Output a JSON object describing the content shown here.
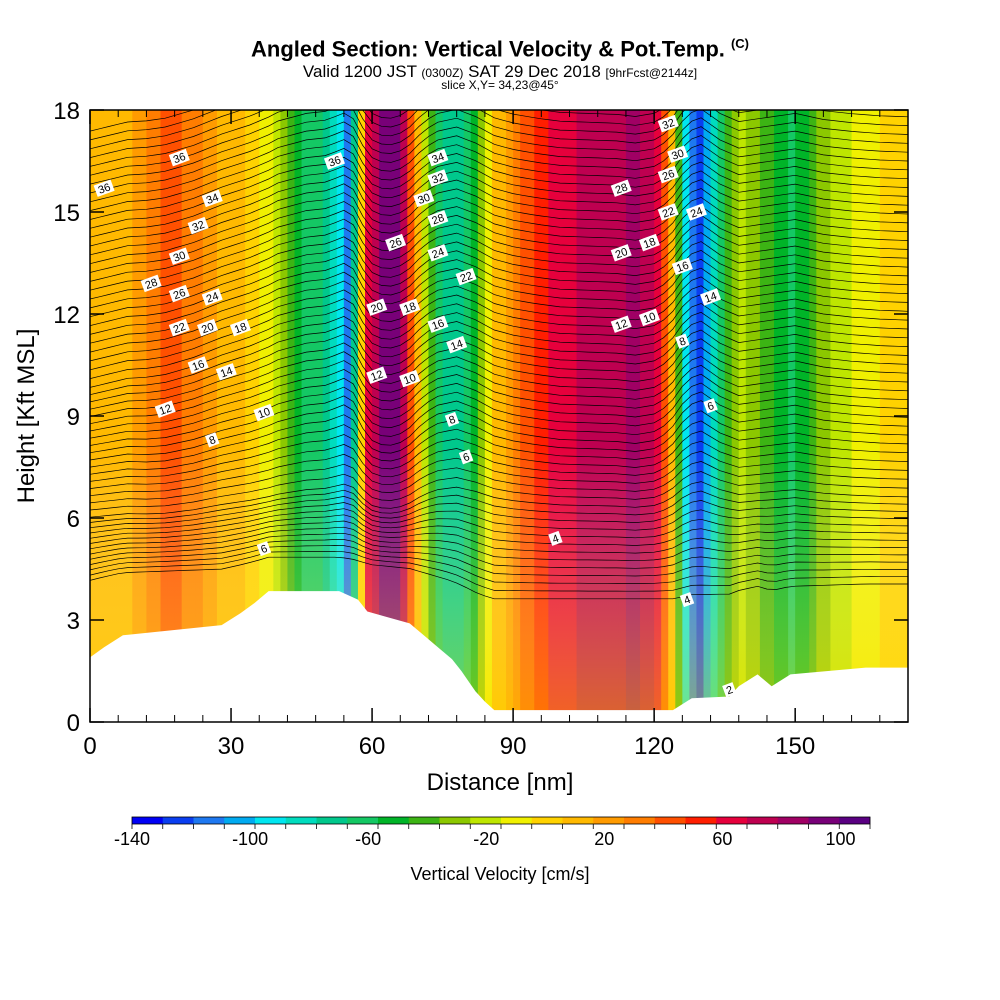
{
  "title": {
    "main": "Angled Section: Vertical Velocity & Pot.Temp.",
    "copyright": "(C)",
    "valid_prefix": "Valid 1200 JST",
    "valid_zulu": "(0300Z)",
    "valid_date": "SAT 29 Dec 2018",
    "forecast": "[9hrFcst@2144z]",
    "slice": "slice X,Y= 34,23@45°"
  },
  "chart_data": {
    "type": "heatmap",
    "xlabel": "Distance [nm]",
    "ylabel": "Height [Kft MSL]",
    "xlim": [
      0,
      174
    ],
    "ylim": [
      0,
      18
    ],
    "x_ticks": [
      0,
      30,
      60,
      90,
      120,
      150
    ],
    "y_ticks": [
      0,
      3,
      6,
      9,
      12,
      15,
      18
    ],
    "colorbar": {
      "label": "Vertical Velocity [cm/s]",
      "range": [
        -140,
        110
      ],
      "tick_labels": [
        -140,
        -100,
        -60,
        -20,
        20,
        60,
        100
      ],
      "colors": [
        "#0000f5",
        "#0a3ef0",
        "#1e78f0",
        "#00aaf0",
        "#00e6f0",
        "#00dcbe",
        "#00c88c",
        "#14c864",
        "#00b428",
        "#3cb414",
        "#8cc800",
        "#bee600",
        "#f0f000",
        "#ffd200",
        "#ffb900",
        "#ff9b00",
        "#ff7d00",
        "#ff5000",
        "#ff1e00",
        "#e6003c",
        "#be0050",
        "#a00064",
        "#780078",
        "#5a0082"
      ]
    },
    "velocity_bands": [
      {
        "x": 0,
        "v": 10
      },
      {
        "x": 8,
        "v": 12
      },
      {
        "x": 12,
        "v": 30
      },
      {
        "x": 16,
        "v": 40
      },
      {
        "x": 22,
        "v": 35
      },
      {
        "x": 28,
        "v": 15
      },
      {
        "x": 34,
        "v": 5
      },
      {
        "x": 38,
        "v": -10
      },
      {
        "x": 42,
        "v": -35
      },
      {
        "x": 46,
        "v": -60
      },
      {
        "x": 50,
        "v": -70
      },
      {
        "x": 53,
        "v": -95
      },
      {
        "x": 55,
        "v": -115
      },
      {
        "x": 57,
        "v": -40
      },
      {
        "x": 59,
        "v": 60
      },
      {
        "x": 62,
        "v": 90
      },
      {
        "x": 65,
        "v": 95
      },
      {
        "x": 68,
        "v": 50
      },
      {
        "x": 71,
        "v": -20
      },
      {
        "x": 74,
        "v": -60
      },
      {
        "x": 78,
        "v": -80
      },
      {
        "x": 82,
        "v": -45
      },
      {
        "x": 86,
        "v": 5
      },
      {
        "x": 90,
        "v": 30
      },
      {
        "x": 95,
        "v": 50
      },
      {
        "x": 100,
        "v": 65
      },
      {
        "x": 106,
        "v": 70
      },
      {
        "x": 112,
        "v": 75
      },
      {
        "x": 116,
        "v": 85
      },
      {
        "x": 120,
        "v": 70
      },
      {
        "x": 123,
        "v": 30
      },
      {
        "x": 125,
        "v": -30
      },
      {
        "x": 127,
        "v": -100
      },
      {
        "x": 130,
        "v": -125
      },
      {
        "x": 134,
        "v": -60
      },
      {
        "x": 138,
        "v": -20
      },
      {
        "x": 144,
        "v": -40
      },
      {
        "x": 150,
        "v": -60
      },
      {
        "x": 156,
        "v": -30
      },
      {
        "x": 162,
        "v": -15
      },
      {
        "x": 168,
        "v": -5
      },
      {
        "x": 174,
        "v": 0
      }
    ],
    "terrain": [
      {
        "x": 0,
        "h": 1.9
      },
      {
        "x": 3,
        "h": 2.2
      },
      {
        "x": 7,
        "h": 2.55
      },
      {
        "x": 28,
        "h": 2.85
      },
      {
        "x": 32,
        "h": 3.2
      },
      {
        "x": 35,
        "h": 3.5
      },
      {
        "x": 38,
        "h": 3.85
      },
      {
        "x": 52,
        "h": 3.85
      },
      {
        "x": 53,
        "h": 3.85
      },
      {
        "x": 57,
        "h": 3.6
      },
      {
        "x": 59,
        "h": 3.25
      },
      {
        "x": 68,
        "h": 2.9
      },
      {
        "x": 71,
        "h": 2.55
      },
      {
        "x": 74,
        "h": 2.2
      },
      {
        "x": 77,
        "h": 1.85
      },
      {
        "x": 79,
        "h": 1.5
      },
      {
        "x": 81,
        "h": 1.1
      },
      {
        "x": 82,
        "h": 0.9
      },
      {
        "x": 84,
        "h": 0.6
      },
      {
        "x": 86,
        "h": 0.35
      },
      {
        "x": 124,
        "h": 0.35
      },
      {
        "x": 128,
        "h": 0.7
      },
      {
        "x": 136,
        "h": 0.75
      },
      {
        "x": 138,
        "h": 1.05
      },
      {
        "x": 142,
        "h": 1.4
      },
      {
        "x": 145,
        "h": 1.05
      },
      {
        "x": 149,
        "h": 1.4
      },
      {
        "x": 165,
        "h": 1.6
      },
      {
        "x": 174,
        "h": 1.6
      }
    ],
    "isentrope_labels": [
      {
        "text": "36",
        "x": 3,
        "y": 15.7
      },
      {
        "text": "36",
        "x": 19,
        "y": 16.6
      },
      {
        "text": "36",
        "x": 52,
        "y": 16.5
      },
      {
        "text": "34",
        "x": 26,
        "y": 15.4
      },
      {
        "text": "34",
        "x": 74,
        "y": 16.6
      },
      {
        "text": "32",
        "x": 23,
        "y": 14.6
      },
      {
        "text": "32",
        "x": 74,
        "y": 16.0
      },
      {
        "text": "32",
        "x": 123,
        "y": 17.6
      },
      {
        "text": "30",
        "x": 19,
        "y": 13.7
      },
      {
        "text": "30",
        "x": 71,
        "y": 15.4
      },
      {
        "text": "30",
        "x": 125,
        "y": 16.7
      },
      {
        "text": "28",
        "x": 13,
        "y": 12.9
      },
      {
        "text": "28",
        "x": 74,
        "y": 14.8
      },
      {
        "text": "28",
        "x": 113,
        "y": 15.7
      },
      {
        "text": "26",
        "x": 19,
        "y": 12.6
      },
      {
        "text": "26",
        "x": 65,
        "y": 14.1
      },
      {
        "text": "26",
        "x": 123,
        "y": 16.1
      },
      {
        "text": "24",
        "x": 26,
        "y": 12.5
      },
      {
        "text": "24",
        "x": 74,
        "y": 13.8
      },
      {
        "text": "24",
        "x": 129,
        "y": 15.0
      },
      {
        "text": "22",
        "x": 19,
        "y": 11.6
      },
      {
        "text": "22",
        "x": 80,
        "y": 13.1
      },
      {
        "text": "22",
        "x": 123,
        "y": 15.0
      },
      {
        "text": "20",
        "x": 25,
        "y": 11.6
      },
      {
        "text": "20",
        "x": 61,
        "y": 12.2
      },
      {
        "text": "20",
        "x": 113,
        "y": 13.8
      },
      {
        "text": "18",
        "x": 32,
        "y": 11.6
      },
      {
        "text": "18",
        "x": 68,
        "y": 12.2
      },
      {
        "text": "18",
        "x": 119,
        "y": 14.1
      },
      {
        "text": "16",
        "x": 23,
        "y": 10.5
      },
      {
        "text": "16",
        "x": 74,
        "y": 11.7
      },
      {
        "text": "16",
        "x": 126,
        "y": 13.4
      },
      {
        "text": "14",
        "x": 29,
        "y": 10.3
      },
      {
        "text": "14",
        "x": 78,
        "y": 11.1
      },
      {
        "text": "14",
        "x": 132,
        "y": 12.5
      },
      {
        "text": "12",
        "x": 16,
        "y": 9.2
      },
      {
        "text": "12",
        "x": 61,
        "y": 10.2
      },
      {
        "text": "12",
        "x": 113,
        "y": 11.7
      },
      {
        "text": "10",
        "x": 37,
        "y": 9.1
      },
      {
        "text": "10",
        "x": 68,
        "y": 10.1
      },
      {
        "text": "10",
        "x": 119,
        "y": 11.9
      },
      {
        "text": "8",
        "x": 26,
        "y": 8.3
      },
      {
        "text": "8",
        "x": 77,
        "y": 8.9
      },
      {
        "text": "8",
        "x": 126,
        "y": 11.2
      },
      {
        "text": "6",
        "x": 37,
        "y": 5.1
      },
      {
        "text": "6",
        "x": 80,
        "y": 7.8
      },
      {
        "text": "6",
        "x": 132,
        "y": 9.3
      },
      {
        "text": "4",
        "x": 99,
        "y": 5.4
      },
      {
        "text": "4",
        "x": 127,
        "y": 3.6
      },
      {
        "text": "2",
        "x": 136,
        "y": 0.95
      }
    ]
  }
}
